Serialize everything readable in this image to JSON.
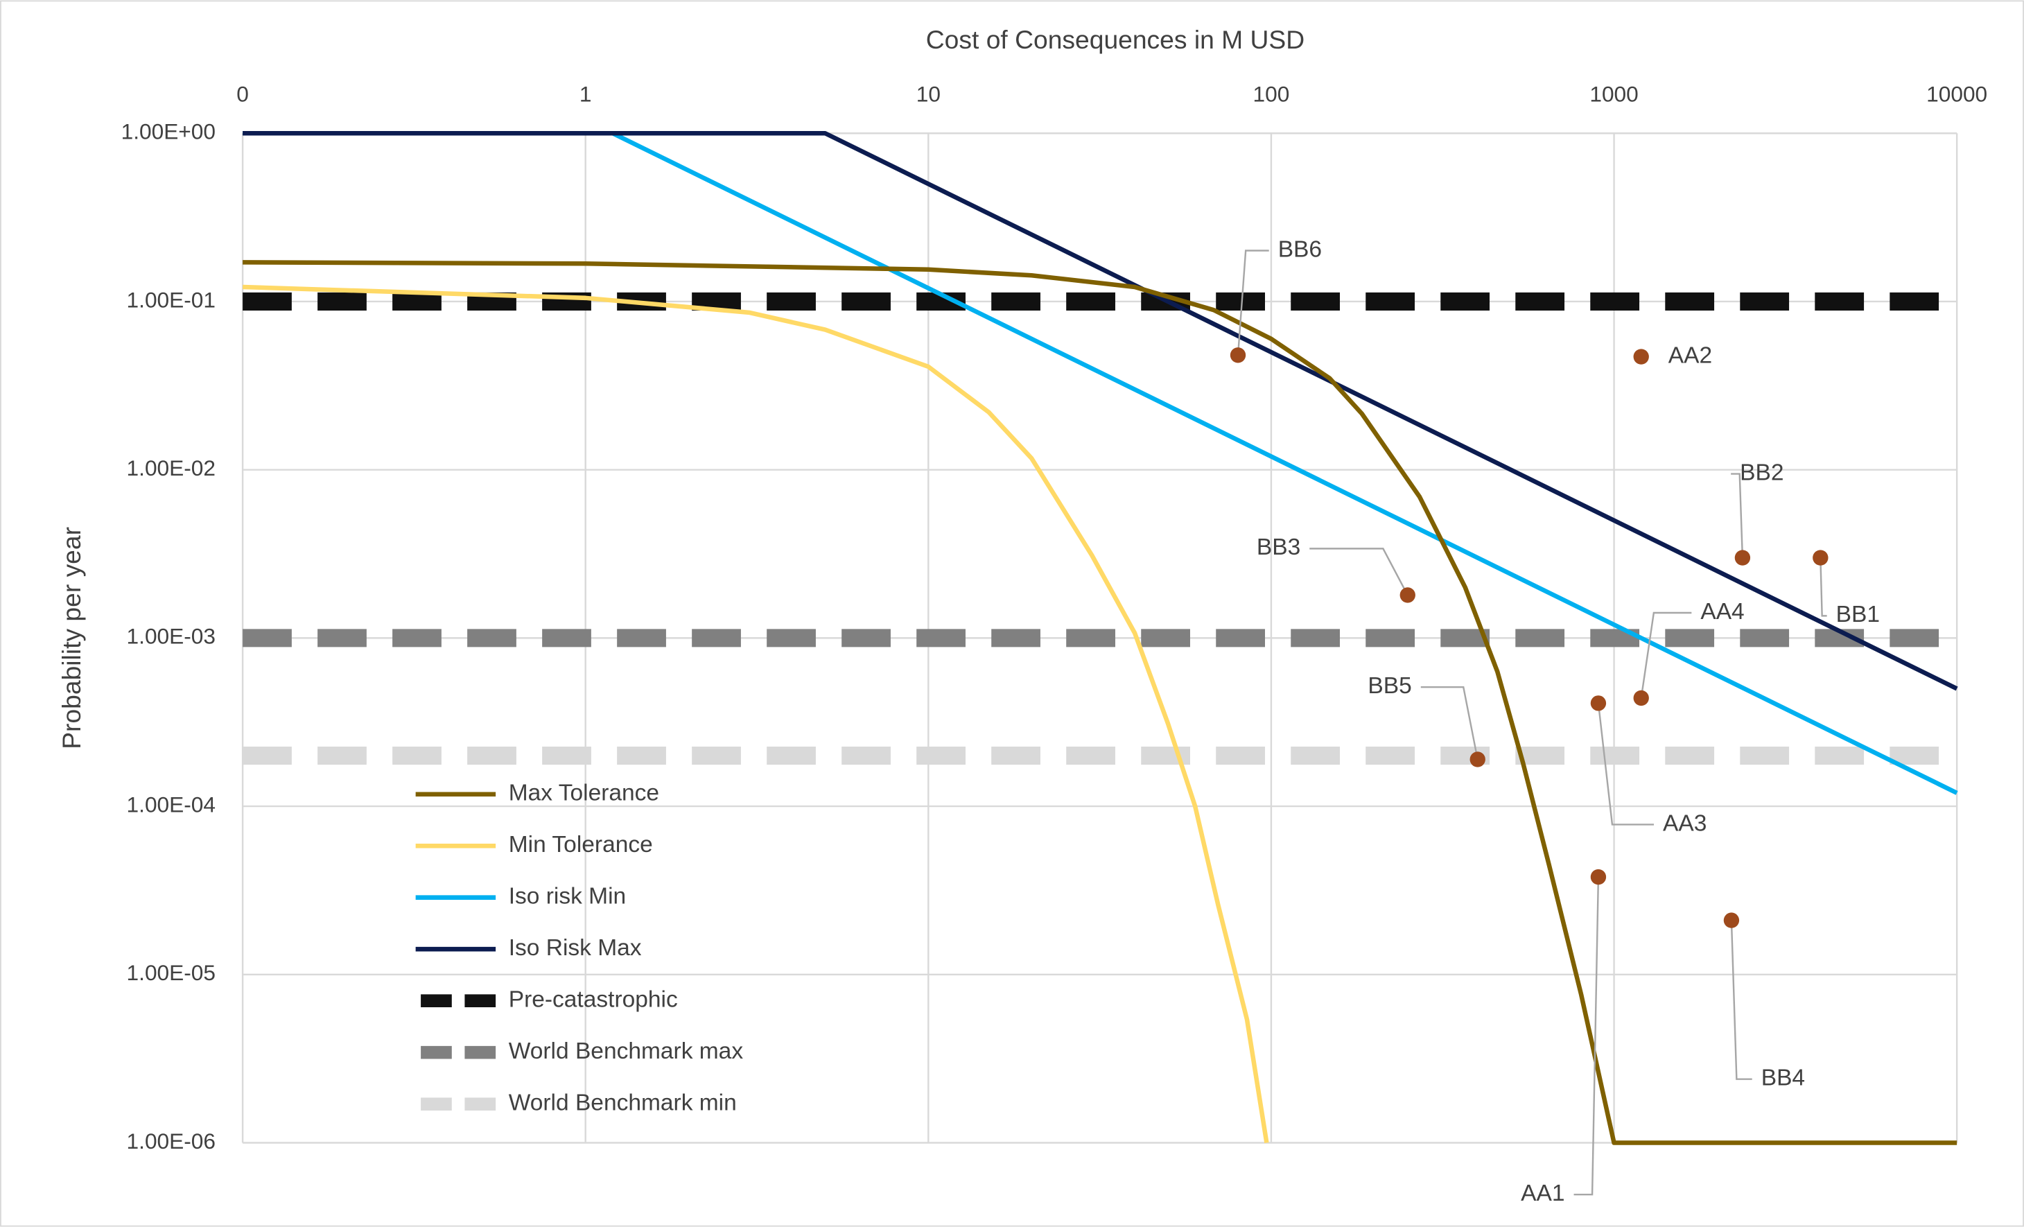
{
  "chart_data": {
    "type": "line",
    "xlabel": "Cost of Consequences in M USD",
    "ylabel": "Probability per year",
    "xlog": true,
    "ylog": true,
    "grid": true,
    "legend": "lower left",
    "xlim": [
      0.1,
      10000
    ],
    "xticks": [
      {
        "value": 0.1,
        "label": "0"
      },
      1,
      10,
      100,
      1000,
      10000
    ],
    "ylim": [
      1e-06,
      1
    ],
    "yticks": [
      {
        "value": 1e-06,
        "label": "1.00E-06"
      },
      {
        "value": 1e-05,
        "label": "1.00E-05"
      },
      {
        "value": 0.0001,
        "label": "1.00E-04"
      },
      {
        "value": 0.001,
        "label": "1.00E-03"
      },
      {
        "value": 0.01,
        "label": "1.00E-02"
      },
      {
        "value": 0.1,
        "label": "1.00E-01"
      },
      {
        "value": 1,
        "label": "1.00E+00"
      }
    ],
    "series": [
      {
        "name": "Max Tolerance",
        "color": "#7f6000",
        "dashed": false,
        "x": [
          0.1,
          1,
          10,
          20,
          40,
          68,
          100,
          148,
          184,
          271,
          368,
          457,
          543,
          646,
          802,
          1000,
          10000
        ],
        "values": [
          0.171,
          0.168,
          0.155,
          0.143,
          0.122,
          0.089,
          0.06,
          0.035,
          0.0215,
          0.0069,
          0.002,
          0.00063,
          0.00018,
          4.5e-05,
          7.6e-06,
          1e-06,
          1e-06
        ]
      },
      {
        "name": "Min Tolerance",
        "color": "#ffd966",
        "dashed": false,
        "x": [
          0.1,
          1,
          3,
          5,
          10,
          15,
          20,
          30,
          40,
          50,
          60,
          70,
          85,
          97
        ],
        "values": [
          0.122,
          0.105,
          0.086,
          0.068,
          0.041,
          0.022,
          0.0117,
          0.0031,
          0.00107,
          0.00031,
          0.0001,
          2.6e-05,
          5.4e-06,
          1e-06
        ]
      },
      {
        "name": "Iso risk Min",
        "color": "#00b0f0",
        "dashed": false,
        "x": [
          0.1,
          1.2,
          10000
        ],
        "values": [
          1,
          1,
          0.00012
        ]
      },
      {
        "name": "Iso Risk Max",
        "color": "#0c1c50",
        "dashed": false,
        "x": [
          0.1,
          5,
          10000
        ],
        "values": [
          1,
          1,
          0.0005
        ]
      },
      {
        "name": "Pre-catastrophic",
        "color": "#111111",
        "dashed": true,
        "x": [
          0.1,
          10000
        ],
        "values": [
          0.1,
          0.1
        ]
      },
      {
        "name": "World Benchmark max",
        "color": "#808080",
        "dashed": true,
        "x": [
          0.1,
          10000
        ],
        "values": [
          0.001,
          0.001
        ]
      },
      {
        "name": "World Benchmark min",
        "color": "#d9d9d9",
        "dashed": true,
        "x": [
          0.1,
          10000
        ],
        "values": [
          0.0002,
          0.0002
        ]
      }
    ],
    "points": {
      "color": "#9e4a1c",
      "labels": [
        "BB6",
        "AA2",
        "BB2",
        "BB1",
        "BB3",
        "AA4",
        "AA3",
        "BB5",
        "AA1",
        "BB4"
      ],
      "x": [
        80,
        1200,
        2370,
        4000,
        250,
        1200,
        900,
        400,
        900,
        2200
      ],
      "values": [
        0.048,
        0.047,
        0.003,
        0.003,
        0.0018,
        0.00044,
        0.00041,
        0.00019,
        3.8e-05,
        2.1e-05
      ]
    }
  }
}
